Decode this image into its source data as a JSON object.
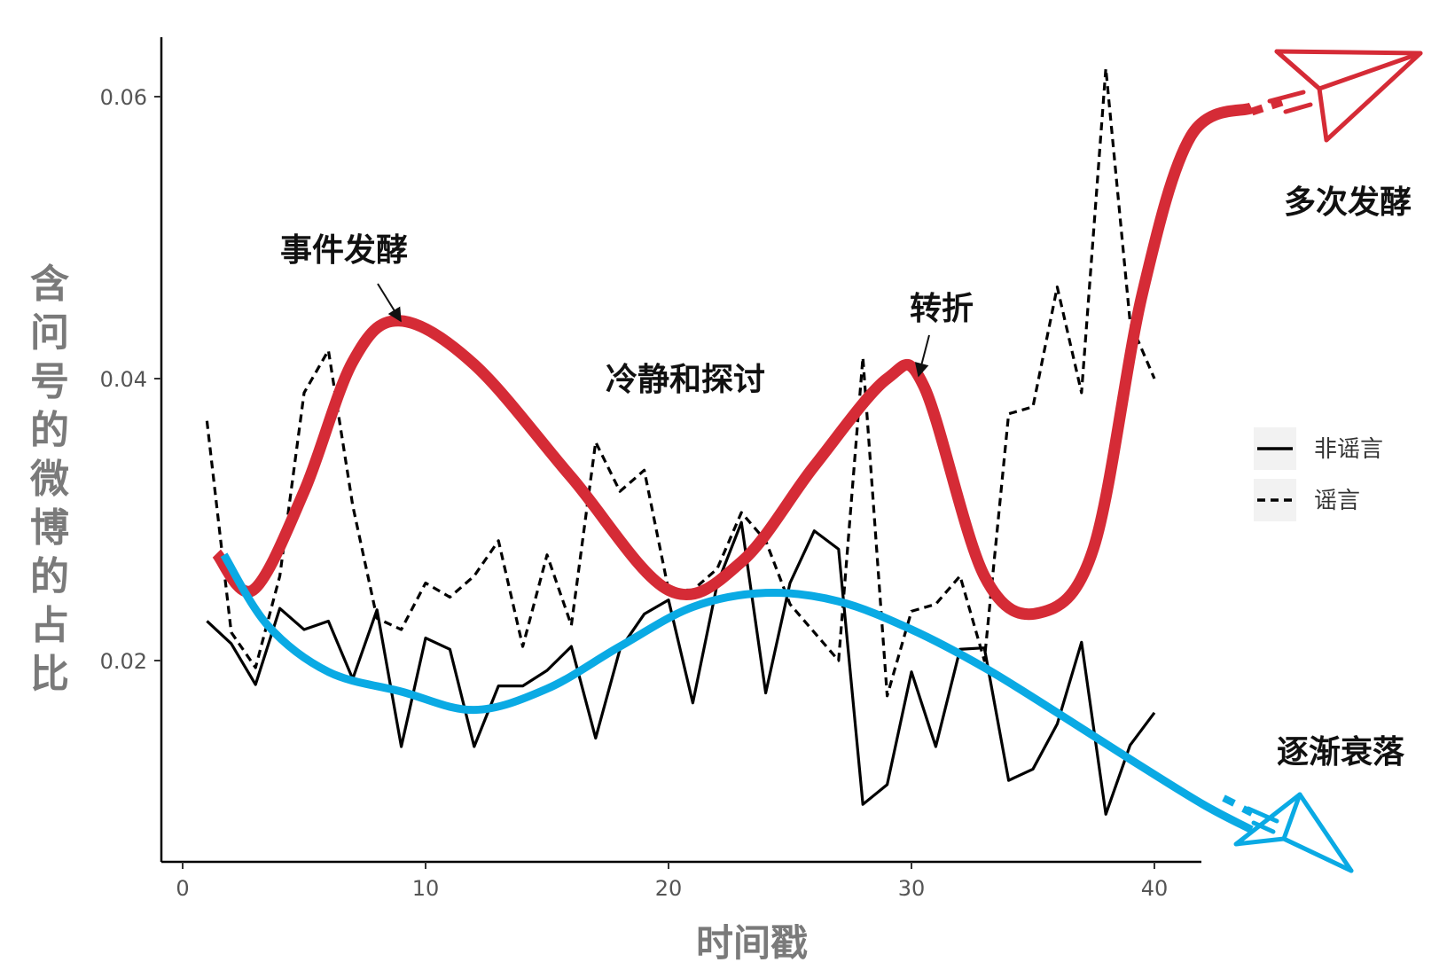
{
  "chart_data": {
    "type": "line",
    "xlabel": "时间戳",
    "ylabel": "含问号的微博的占比",
    "xlim": [
      -0.8,
      42
    ],
    "ylim": [
      0.0065,
      0.0645
    ],
    "x_ticks": [
      0,
      10,
      20,
      30,
      40
    ],
    "x_tick_labels": [
      "0",
      "10",
      "20",
      "30",
      "40"
    ],
    "y_ticks": [
      0.02,
      0.04,
      0.06
    ],
    "y_tick_labels": [
      "0.02",
      "0.04",
      "0.06"
    ],
    "grid": false,
    "legend_position": "right",
    "x": [
      1,
      2,
      3,
      4,
      5,
      6,
      7,
      8,
      9,
      10,
      11,
      12,
      13,
      14,
      15,
      16,
      17,
      18,
      19,
      20,
      21,
      22,
      23,
      24,
      25,
      26,
      27,
      28,
      29,
      30,
      31,
      32,
      33,
      34,
      35,
      36,
      37,
      38,
      39,
      40
    ],
    "series": [
      {
        "name": "非谣言",
        "style": "solid",
        "values": [
          0.0228,
          0.0212,
          0.0183,
          0.0237,
          0.0222,
          0.0228,
          0.0187,
          0.0236,
          0.0139,
          0.0216,
          0.0208,
          0.0139,
          0.0182,
          0.0182,
          0.0193,
          0.021,
          0.0145,
          0.0208,
          0.0233,
          0.0243,
          0.017,
          0.0254,
          0.0298,
          0.0177,
          0.0255,
          0.0292,
          0.0279,
          0.0098,
          0.0112,
          0.0192,
          0.0139,
          0.0208,
          0.0209,
          0.0115,
          0.0123,
          0.0155,
          0.0213,
          0.0091,
          0.014,
          0.0163
        ]
      },
      {
        "name": "谣言",
        "style": "dashed",
        "values": [
          0.037,
          0.022,
          0.0195,
          0.026,
          0.039,
          0.042,
          0.031,
          0.023,
          0.0222,
          0.0255,
          0.0245,
          0.026,
          0.0285,
          0.021,
          0.0275,
          0.0225,
          0.0355,
          0.032,
          0.0335,
          0.025,
          0.025,
          0.0265,
          0.0305,
          0.0285,
          0.024,
          0.022,
          0.02,
          0.0415,
          0.0175,
          0.0235,
          0.024,
          0.026,
          0.02,
          0.0375,
          0.038,
          0.0465,
          0.039,
          0.062,
          0.044,
          0.04
        ]
      }
    ],
    "trend_curves": [
      {
        "color": "#d52b36",
        "points": [
          [
            1.4,
            0.0276
          ],
          [
            2.9,
            0.025
          ],
          [
            5,
            0.032
          ],
          [
            7,
            0.0412
          ],
          [
            8.9,
            0.0441
          ],
          [
            12,
            0.041
          ],
          [
            16,
            0.033
          ],
          [
            20,
            0.025
          ],
          [
            23,
            0.027
          ],
          [
            26,
            0.0338
          ],
          [
            29,
            0.04
          ],
          [
            30.5,
            0.0395
          ],
          [
            33,
            0.026
          ],
          [
            35.3,
            0.0234
          ],
          [
            37.5,
            0.028
          ],
          [
            39.5,
            0.046
          ],
          [
            41.5,
            0.0572
          ],
          [
            44,
            0.0592
          ]
        ]
      },
      {
        "color": "#0aaae4",
        "points": [
          [
            1.7,
            0.0275
          ],
          [
            3.5,
            0.0225
          ],
          [
            6,
            0.0192
          ],
          [
            9,
            0.0178
          ],
          [
            12,
            0.0165
          ],
          [
            15,
            0.018
          ],
          [
            18,
            0.021
          ],
          [
            21,
            0.0238
          ],
          [
            24,
            0.0248
          ],
          [
            27,
            0.0242
          ],
          [
            30,
            0.0222
          ],
          [
            33,
            0.0195
          ],
          [
            36,
            0.0163
          ],
          [
            39,
            0.013
          ],
          [
            42,
            0.0098
          ],
          [
            44,
            0.008
          ]
        ]
      }
    ],
    "annotations": [
      {
        "text": "事件发酵",
        "target": [
          8.9,
          0.0441
        ]
      },
      {
        "text": "冷静和探讨"
      },
      {
        "text": "转折",
        "target": [
          30.2,
          0.04
        ]
      },
      {
        "text": "多次发酵"
      },
      {
        "text": "逐渐衰落"
      }
    ]
  }
}
